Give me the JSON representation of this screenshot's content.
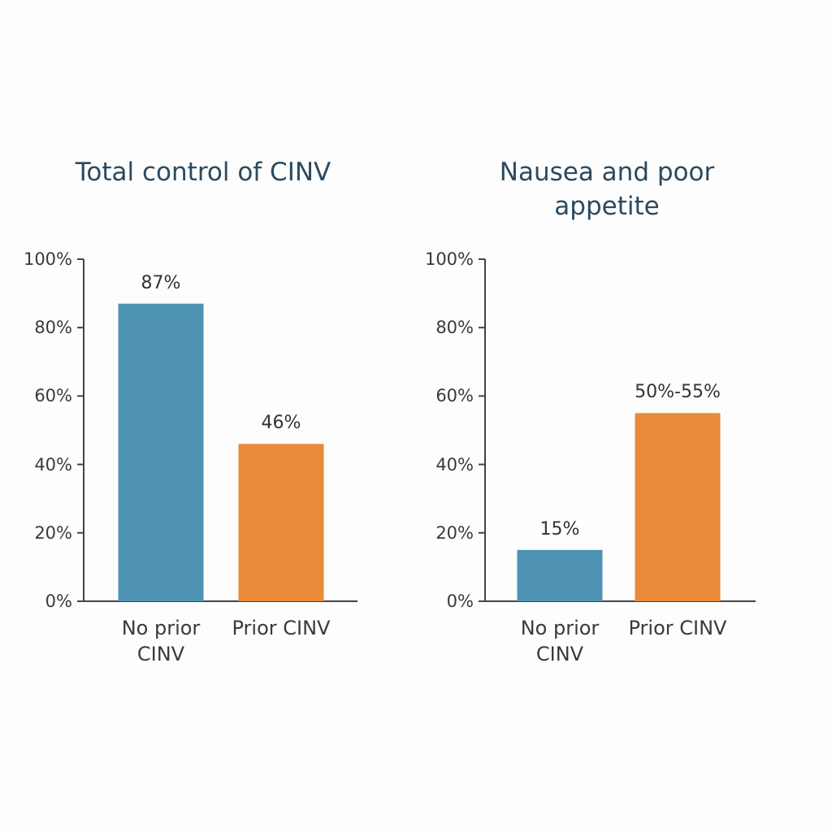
{
  "chart_data": [
    {
      "type": "bar",
      "title": "Total control of CINV",
      "categories": [
        "No prior CINV",
        "Prior CINV"
      ],
      "values": [
        87,
        46
      ],
      "value_labels": [
        "87%",
        "46%"
      ],
      "colors": [
        "#4e93b3",
        "#e88a3a"
      ],
      "ylim": [
        0,
        100
      ],
      "yticks": [
        {
          "value": 0,
          "label": "0%"
        },
        {
          "value": 20,
          "label": "20%"
        },
        {
          "value": 40,
          "label": "40%"
        },
        {
          "value": 60,
          "label": "60%"
        },
        {
          "value": 80,
          "label": "80%"
        },
        {
          "value": 100,
          "label": "100%"
        }
      ]
    },
    {
      "type": "bar",
      "title": "Nausea and poor appetite",
      "categories": [
        "No prior CINV",
        "Prior CINV"
      ],
      "values": [
        15,
        55
      ],
      "value_labels": [
        "15%",
        "50%-55%"
      ],
      "colors": [
        "#4e93b3",
        "#e88a3a"
      ],
      "ylim": [
        0,
        100
      ],
      "yticks": [
        {
          "value": 0,
          "label": "0%"
        },
        {
          "value": 20,
          "label": "20%"
        },
        {
          "value": 40,
          "label": "40%"
        },
        {
          "value": 60,
          "label": "60%"
        },
        {
          "value": 80,
          "label": "80%"
        },
        {
          "value": 100,
          "label": "100%"
        }
      ]
    }
  ]
}
